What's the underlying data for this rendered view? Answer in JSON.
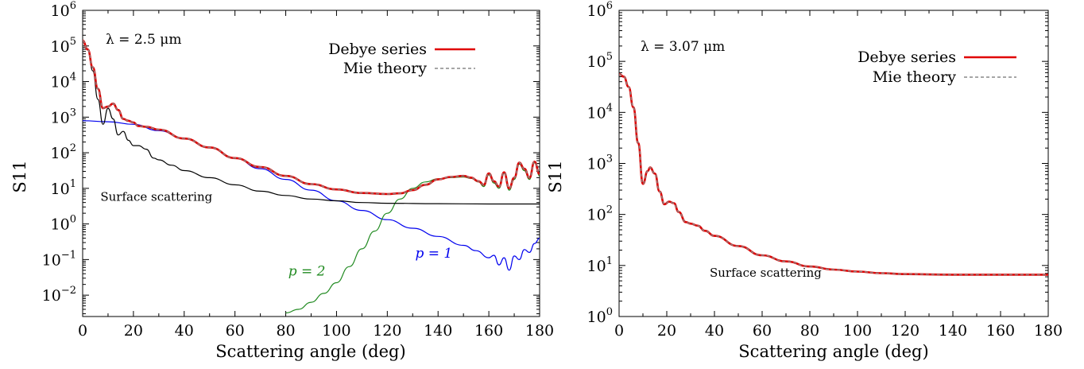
{
  "chart_data": [
    {
      "type": "line",
      "annotation": "λ = 2.5 μm",
      "xlabel": "Scattering angle (deg)",
      "ylabel": "S11",
      "xlim": [
        0,
        180
      ],
      "ylim_log10": [
        -2.6,
        6
      ],
      "yscale": "log",
      "x_ticks": [
        "0",
        "20",
        "40",
        "60",
        "80",
        "100",
        "120",
        "140",
        "160",
        "180"
      ],
      "y_ticks": [
        {
          "base": "10",
          "exp": "−2",
          "log": -2
        },
        {
          "base": "10",
          "exp": "−1",
          "log": -1
        },
        {
          "base": "10",
          "exp": "0",
          "log": 0
        },
        {
          "base": "10",
          "exp": "1",
          "log": 1
        },
        {
          "base": "10",
          "exp": "2",
          "log": 2
        },
        {
          "base": "10",
          "exp": "3",
          "log": 3
        },
        {
          "base": "10",
          "exp": "4",
          "log": 4
        },
        {
          "base": "10",
          "exp": "5",
          "log": 5
        },
        {
          "base": "10",
          "exp": "6",
          "log": 6
        }
      ],
      "legend": [
        "Debye series",
        "Mie theory"
      ],
      "legend_position": "top-right",
      "series": [
        {
          "name": "Debye series",
          "color": "#e00000",
          "x": [
            0,
            2,
            4,
            6,
            8,
            10,
            12,
            14,
            16,
            18,
            20,
            22,
            25,
            30,
            40,
            50,
            60,
            70,
            80,
            90,
            100,
            110,
            120,
            125,
            130,
            135,
            140,
            145,
            150,
            153,
            156,
            158,
            160,
            162,
            164,
            166,
            168,
            170,
            172,
            174,
            176,
            178,
            180
          ],
          "y": [
            5.15,
            4.9,
            4.4,
            3.8,
            3.25,
            3.3,
            3.38,
            3.2,
            2.95,
            2.9,
            2.85,
            2.75,
            2.73,
            2.65,
            2.4,
            2.15,
            1.85,
            1.6,
            1.35,
            1.12,
            0.97,
            0.87,
            0.84,
            0.86,
            0.95,
            1.1,
            1.25,
            1.32,
            1.35,
            1.3,
            1.2,
            1.1,
            1.42,
            1.2,
            1.05,
            1.45,
            1.0,
            1.3,
            1.72,
            1.55,
            1.3,
            1.75,
            1.4
          ]
        },
        {
          "name": "Mie theory",
          "color": "#888888",
          "x": [
            0,
            2,
            4,
            6,
            8,
            10,
            12,
            14,
            16,
            18,
            20,
            22,
            25,
            30,
            40,
            50,
            60,
            70,
            80,
            90,
            100,
            110,
            120,
            125,
            130,
            135,
            140,
            145,
            150,
            153,
            156,
            158,
            160,
            162,
            164,
            166,
            168,
            170,
            172,
            174,
            176,
            178,
            180
          ],
          "y": [
            5.15,
            4.9,
            4.4,
            3.8,
            3.25,
            3.3,
            3.38,
            3.2,
            2.95,
            2.9,
            2.85,
            2.75,
            2.73,
            2.65,
            2.4,
            2.15,
            1.85,
            1.6,
            1.35,
            1.12,
            0.97,
            0.87,
            0.84,
            0.86,
            0.95,
            1.1,
            1.25,
            1.32,
            1.35,
            1.3,
            1.2,
            1.1,
            1.42,
            1.2,
            1.05,
            1.45,
            1.0,
            1.3,
            1.72,
            1.55,
            1.3,
            1.75,
            1.4
          ]
        },
        {
          "name": "Surface scattering",
          "color": "#000000",
          "x": [
            0,
            2,
            4,
            6,
            8,
            10,
            12,
            14,
            16,
            18,
            20,
            22,
            25,
            28,
            30,
            35,
            40,
            50,
            60,
            70,
            80,
            90,
            100,
            110,
            120,
            140,
            160,
            180
          ],
          "y": [
            5.15,
            4.9,
            4.3,
            3.5,
            2.8,
            3.25,
            2.95,
            2.5,
            2.6,
            2.35,
            2.2,
            2.2,
            2.1,
            1.85,
            1.8,
            1.65,
            1.5,
            1.3,
            1.1,
            0.92,
            0.8,
            0.7,
            0.65,
            0.6,
            0.58,
            0.57,
            0.56,
            0.56
          ]
        },
        {
          "name": "p = 1",
          "color": "#0000ee",
          "x": [
            0,
            10,
            20,
            30,
            40,
            50,
            60,
            70,
            80,
            90,
            100,
            110,
            120,
            130,
            140,
            150,
            155,
            160,
            162,
            164,
            166,
            168,
            170,
            172,
            174,
            176,
            178,
            180
          ],
          "y": [
            2.9,
            2.87,
            2.8,
            2.62,
            2.4,
            2.15,
            1.85,
            1.55,
            1.25,
            0.95,
            0.65,
            0.38,
            0.12,
            -0.12,
            -0.35,
            -0.6,
            -0.75,
            -0.95,
            -0.88,
            -1.15,
            -0.95,
            -1.3,
            -0.9,
            -1.0,
            -0.72,
            -0.8,
            -0.55,
            -0.4
          ]
        },
        {
          "name": "p = 2",
          "color": "#228B22",
          "x": [
            80,
            85,
            90,
            95,
            100,
            105,
            110,
            115,
            120,
            125,
            130,
            135,
            140,
            145,
            150,
            153,
            156,
            158,
            160,
            162,
            164,
            166,
            168,
            170,
            172,
            174,
            176,
            178,
            180
          ],
          "y": [
            -2.5,
            -2.4,
            -2.2,
            -1.95,
            -1.65,
            -1.2,
            -0.7,
            -0.2,
            0.3,
            0.7,
            1.0,
            1.18,
            1.27,
            1.3,
            1.32,
            1.28,
            1.18,
            1.05,
            1.38,
            1.15,
            1.0,
            1.42,
            0.95,
            1.25,
            1.68,
            1.5,
            1.25,
            1.72,
            1.35
          ]
        }
      ],
      "annotations": [
        {
          "text": "Surface scattering",
          "x": 7,
          "y_log10": 0.65
        },
        {
          "text": "p = 2",
          "x": 81,
          "y_log10": -1.45,
          "color": "#228B22"
        },
        {
          "text": "p = 1",
          "x": 131,
          "y_log10": -0.95,
          "color": "#0000ee"
        }
      ]
    },
    {
      "type": "line",
      "annotation": "λ = 3.07 μm",
      "xlabel": "Scattering angle (deg)",
      "ylabel": "S11",
      "xlim": [
        0,
        180
      ],
      "ylim_log10": [
        0,
        6
      ],
      "yscale": "log",
      "x_ticks": [
        "0",
        "20",
        "40",
        "60",
        "80",
        "100",
        "120",
        "140",
        "160",
        "180"
      ],
      "y_ticks": [
        {
          "base": "10",
          "exp": "0",
          "log": 0
        },
        {
          "base": "10",
          "exp": "1",
          "log": 1
        },
        {
          "base": "10",
          "exp": "2",
          "log": 2
        },
        {
          "base": "10",
          "exp": "3",
          "log": 3
        },
        {
          "base": "10",
          "exp": "4",
          "log": 4
        },
        {
          "base": "10",
          "exp": "5",
          "log": 5
        },
        {
          "base": "10",
          "exp": "6",
          "log": 6
        }
      ],
      "legend": [
        "Debye series",
        "Mie theory"
      ],
      "legend_position": "top-right",
      "series": [
        {
          "name": "Debye series",
          "color": "#e00000",
          "x": [
            0,
            2,
            4,
            6,
            8,
            10,
            12,
            13,
            15,
            17,
            19,
            21,
            23,
            25,
            28,
            30,
            33,
            36,
            40,
            50,
            60,
            70,
            80,
            90,
            100,
            110,
            120,
            140,
            160,
            180
          ],
          "y": [
            4.75,
            4.7,
            4.5,
            4.1,
            3.4,
            2.6,
            2.85,
            2.92,
            2.8,
            2.45,
            2.2,
            2.25,
            2.22,
            2.05,
            1.85,
            1.82,
            1.78,
            1.68,
            1.58,
            1.38,
            1.2,
            1.08,
            0.98,
            0.92,
            0.88,
            0.85,
            0.83,
            0.82,
            0.82,
            0.82
          ]
        },
        {
          "name": "Mie theory",
          "color": "#888888",
          "x": [
            0,
            2,
            4,
            6,
            8,
            10,
            12,
            13,
            15,
            17,
            19,
            21,
            23,
            25,
            28,
            30,
            33,
            36,
            40,
            50,
            60,
            70,
            80,
            90,
            100,
            110,
            120,
            140,
            160,
            180
          ],
          "y": [
            4.75,
            4.7,
            4.5,
            4.1,
            3.4,
            2.6,
            2.85,
            2.92,
            2.8,
            2.45,
            2.2,
            2.25,
            2.22,
            2.05,
            1.85,
            1.82,
            1.78,
            1.68,
            1.58,
            1.38,
            1.2,
            1.08,
            0.98,
            0.92,
            0.88,
            0.85,
            0.83,
            0.82,
            0.82,
            0.82
          ]
        },
        {
          "name": "Surface scattering",
          "color": "#3a0000",
          "x": [
            0,
            2,
            4,
            6,
            8,
            10,
            12,
            13,
            15,
            17,
            19,
            21,
            23,
            25,
            28,
            30,
            33,
            36,
            40,
            50,
            60,
            70,
            80,
            90,
            100,
            110,
            120,
            140,
            160,
            180
          ],
          "y": [
            4.75,
            4.7,
            4.5,
            4.1,
            3.4,
            2.6,
            2.85,
            2.92,
            2.8,
            2.45,
            2.2,
            2.25,
            2.22,
            2.05,
            1.85,
            1.82,
            1.78,
            1.68,
            1.58,
            1.38,
            1.2,
            1.08,
            0.98,
            0.92,
            0.88,
            0.85,
            0.83,
            0.82,
            0.82,
            0.82
          ]
        }
      ],
      "annotations": [
        {
          "text": "Surface scattering",
          "x": 38,
          "y_log10": 0.78
        }
      ]
    }
  ]
}
